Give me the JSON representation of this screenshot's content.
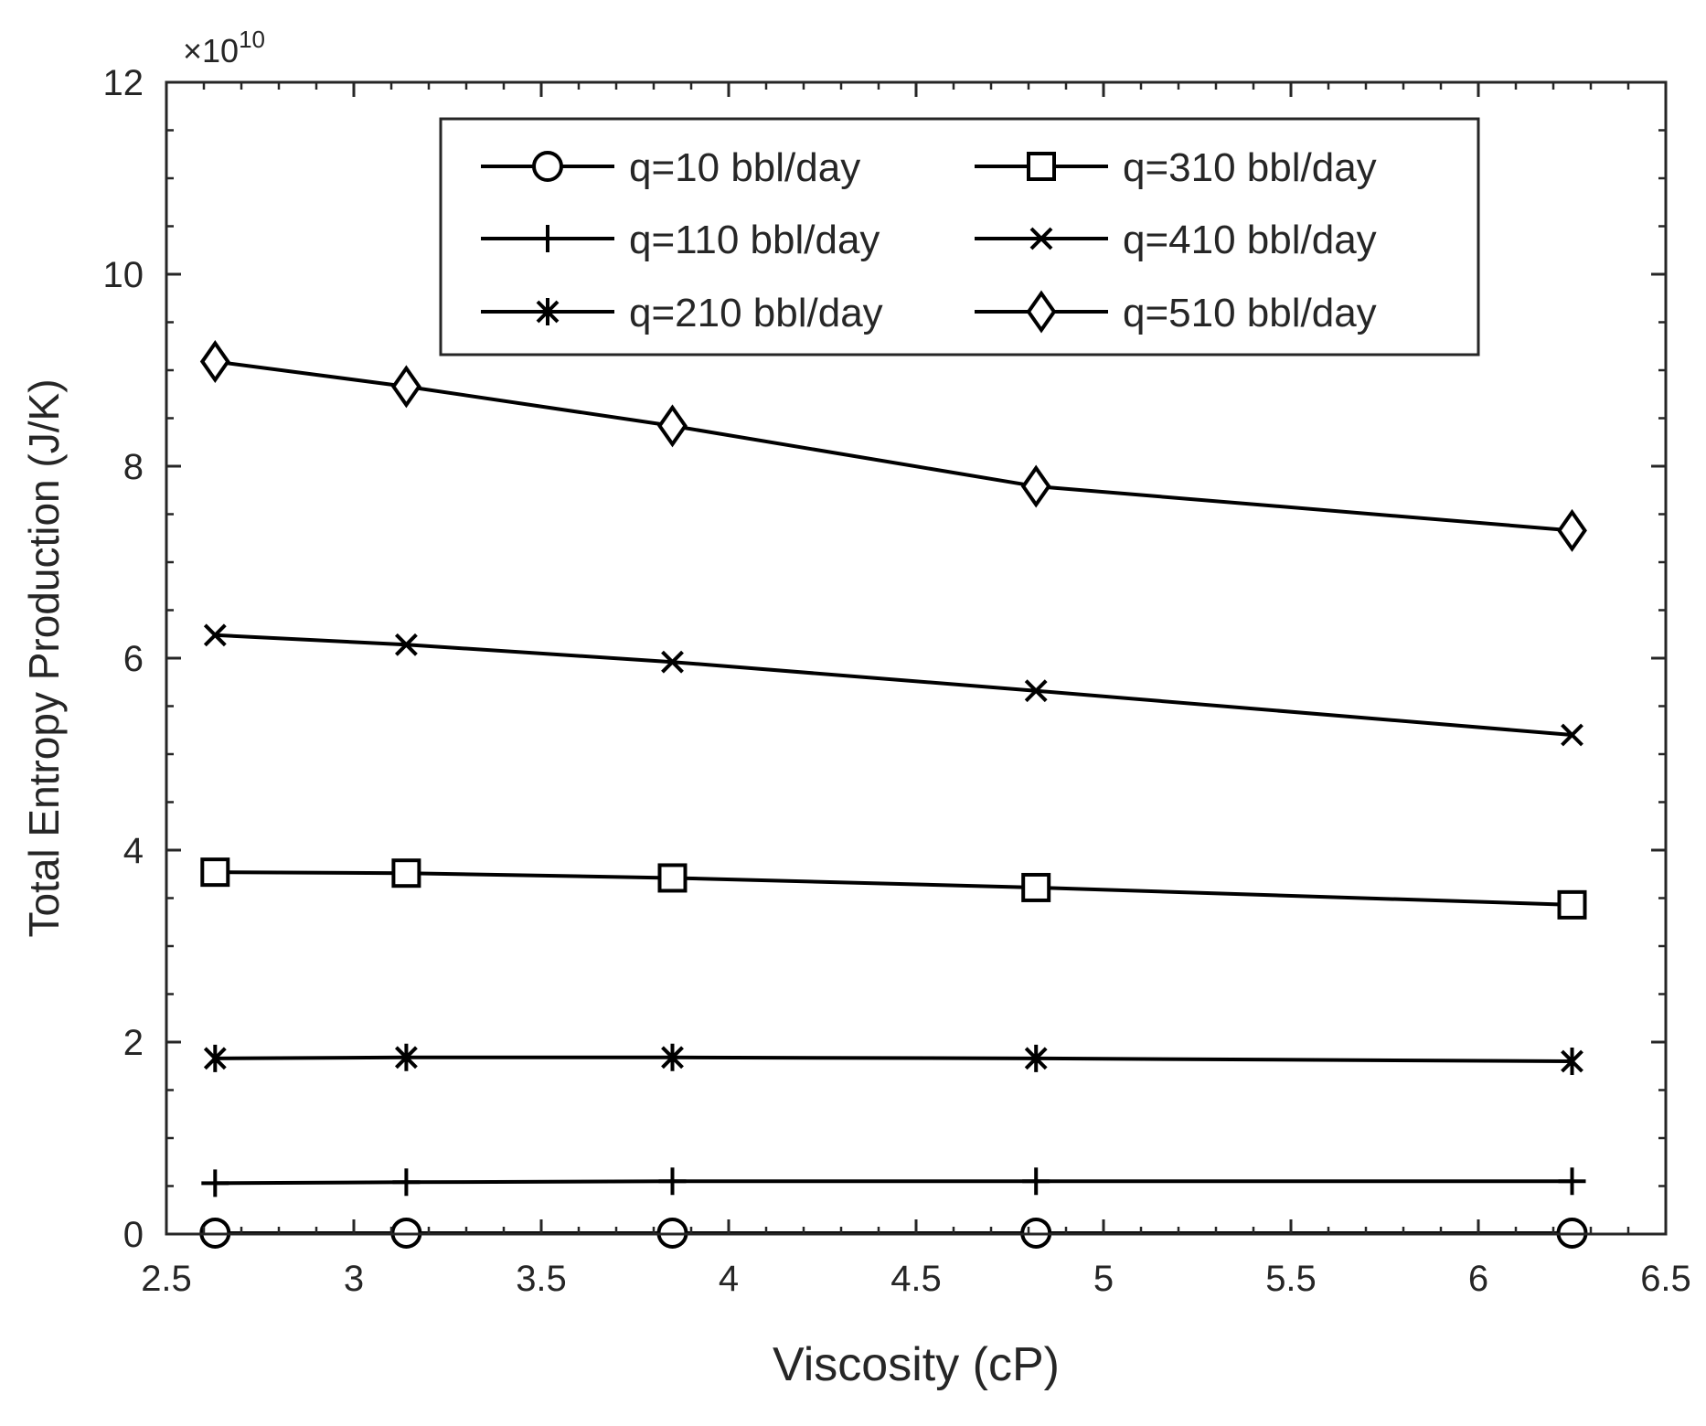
{
  "chart_data": {
    "type": "line",
    "title": "",
    "xlabel": "Viscosity (cP)",
    "ylabel": "Total Entropy Production (J/K)",
    "y_exponent_label": "10",
    "y_exponent_prefix": "×",
    "y_exponent": 10,
    "xlim": [
      2.5,
      6.5
    ],
    "ylim": [
      0,
      12
    ],
    "xticks": [
      2.5,
      3,
      3.5,
      4,
      4.5,
      5,
      5.5,
      6,
      6.5
    ],
    "xtick_labels": [
      "2.5",
      "3",
      "3.5",
      "4",
      "4.5",
      "5",
      "5.5",
      "6",
      "6.5"
    ],
    "yticks": [
      0,
      2,
      4,
      6,
      8,
      10,
      12
    ],
    "ytick_labels": [
      "0",
      "2",
      "4",
      "6",
      "8",
      "10",
      "12"
    ],
    "grid": false,
    "legend_position": "top-center",
    "x": [
      2.63,
      3.14,
      3.85,
      4.82,
      6.25
    ],
    "series": [
      {
        "name": "q=10 bbl/day",
        "marker": "circle",
        "values": [
          0.01,
          0.01,
          0.01,
          0.01,
          0.01
        ]
      },
      {
        "name": "q=110 bbl/day",
        "marker": "plus",
        "values": [
          0.53,
          0.54,
          0.55,
          0.55,
          0.55
        ]
      },
      {
        "name": "q=210 bbl/day",
        "marker": "asterisk",
        "values": [
          1.83,
          1.84,
          1.84,
          1.83,
          1.8
        ]
      },
      {
        "name": "q=310 bbl/day",
        "marker": "square",
        "values": [
          3.77,
          3.76,
          3.71,
          3.61,
          3.43
        ]
      },
      {
        "name": "q=410 bbl/day",
        "marker": "x",
        "values": [
          6.24,
          6.14,
          5.96,
          5.66,
          5.2
        ]
      },
      {
        "name": "q=510 bbl/day",
        "marker": "diamond",
        "values": [
          9.09,
          8.83,
          8.42,
          7.79,
          7.33
        ]
      }
    ]
  }
}
